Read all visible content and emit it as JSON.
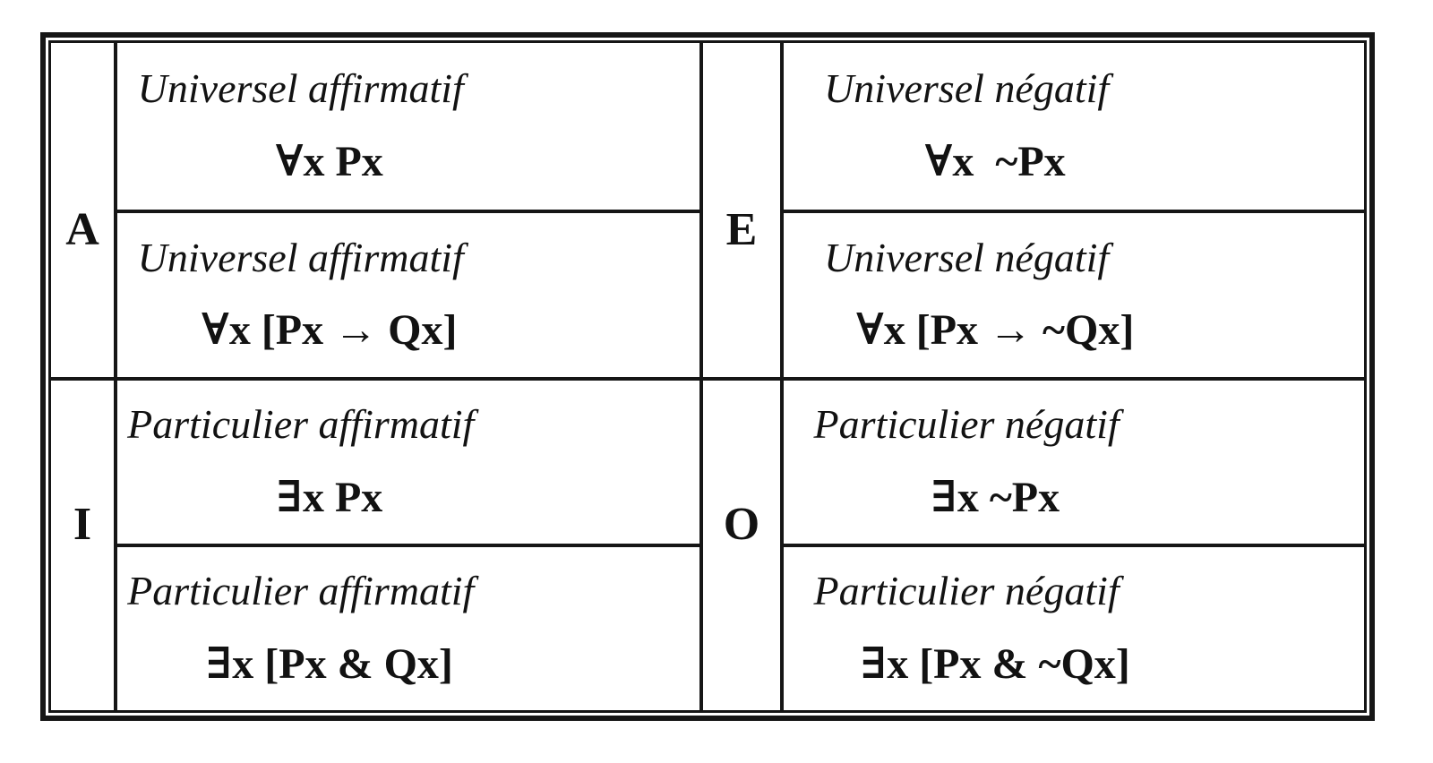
{
  "page": {
    "background": "#ffffff",
    "ink": "#161616",
    "description": "Square of opposition table: categorical proposition types A, E, I, O with French names and predicate-logic formulas"
  },
  "table": {
    "quadrants": [
      {
        "letter": "A",
        "cells": [
          {
            "label": "Universel affirmatif",
            "formula": "∀x Px"
          },
          {
            "label": "Universel affirmatif",
            "formula": "∀x [Px → Qx]"
          }
        ]
      },
      {
        "letter": "E",
        "cells": [
          {
            "label": "Universel négatif",
            "formula": "∀x  ~Px"
          },
          {
            "label": "Universel négatif",
            "formula": "∀x [Px → ~Qx]"
          }
        ]
      },
      {
        "letter": "I",
        "cells": [
          {
            "label": "Particulier affirmatif",
            "formula": "∃x Px"
          },
          {
            "label": "Particulier affirmatif",
            "formula": "∃x [Px & Qx]"
          }
        ]
      },
      {
        "letter": "O",
        "cells": [
          {
            "label": "Particulier négatif",
            "formula": "∃x ~Px"
          },
          {
            "label": "Particulier négatif",
            "formula": "∃x [Px & ~Qx]"
          }
        ]
      }
    ]
  }
}
